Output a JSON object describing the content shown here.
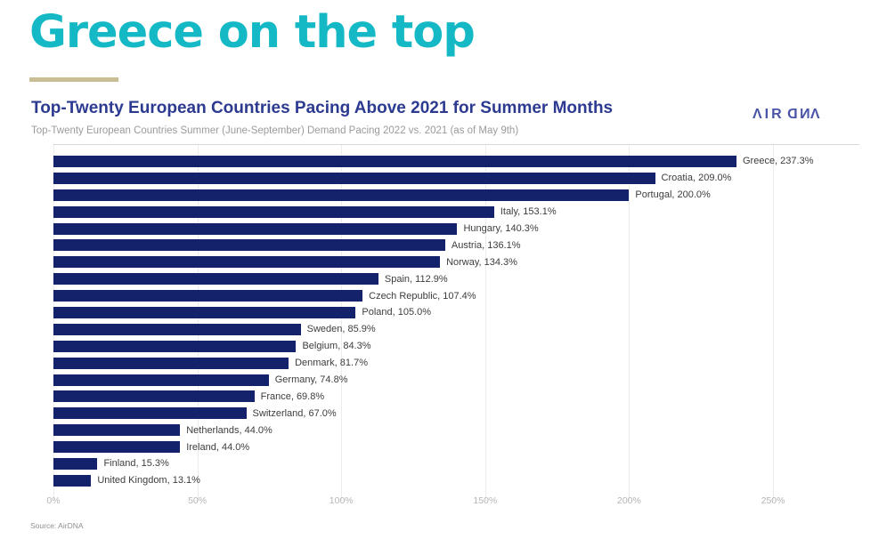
{
  "slide": {
    "title": "Greece on the top"
  },
  "chart": {
    "title": "Top-Twenty European Countries Pacing Above 2021 for Summer Months",
    "subtitle": "Top-Twenty European Countries Summer (June-September) Demand Pacing 2022 vs. 2021 (as of May 9th)",
    "logo_text": "AIRDNA",
    "logo_chars": [
      {
        "ch": "Λ",
        "mirror": false
      },
      {
        "ch": "I",
        "mirror": false
      },
      {
        "ch": "R",
        "mirror": false
      },
      {
        "ch": "D",
        "mirror": true
      },
      {
        "ch": "N",
        "mirror": true
      },
      {
        "ch": "Λ",
        "mirror": false
      }
    ],
    "source": "Source: AirDNA"
  },
  "chart_data": {
    "type": "bar",
    "orientation": "horizontal",
    "title": "Top-Twenty European Countries Pacing Above 2021 for Summer Months",
    "subtitle": "Top-Twenty European Countries Summer (June-September) Demand Pacing 2022 vs. 2021 (as of May 9th)",
    "xlabel": "",
    "ylabel": "",
    "categories": [
      "Greece",
      "Croatia",
      "Portugal",
      "Italy",
      "Hungary",
      "Austria",
      "Norway",
      "Spain",
      "Czech Republic",
      "Poland",
      "Sweden",
      "Belgium",
      "Denmark",
      "Germany",
      "France",
      "Switzerland",
      "Netherlands",
      "Ireland",
      "Finland",
      "United Kingdom"
    ],
    "values": [
      237.3,
      209.0,
      200.0,
      153.1,
      140.3,
      136.1,
      134.3,
      112.9,
      107.4,
      105.0,
      85.9,
      84.3,
      81.7,
      74.8,
      69.8,
      67.0,
      44.0,
      44.0,
      15.3,
      13.1
    ],
    "label_format": "{name}, {value}%",
    "xlim": [
      0,
      280
    ],
    "ticks": [
      0,
      50,
      100,
      150,
      200,
      250
    ],
    "tick_labels": [
      "0%",
      "50%",
      "100%",
      "150%",
      "200%",
      "250%"
    ],
    "grid": true,
    "legend": false
  },
  "colors": {
    "accent": "#14b9c5",
    "underline": "#c9bd93",
    "navy": "#2c3a90",
    "logo": "#4a54a8",
    "bar": "#14216b",
    "grid": "#ececec",
    "plotborder": "#d8d8d8",
    "barlabel": "#3d3d3d",
    "subtitle": "#9b9b9b",
    "axis": "#b4b4b4",
    "source": "#8f8f8f"
  }
}
